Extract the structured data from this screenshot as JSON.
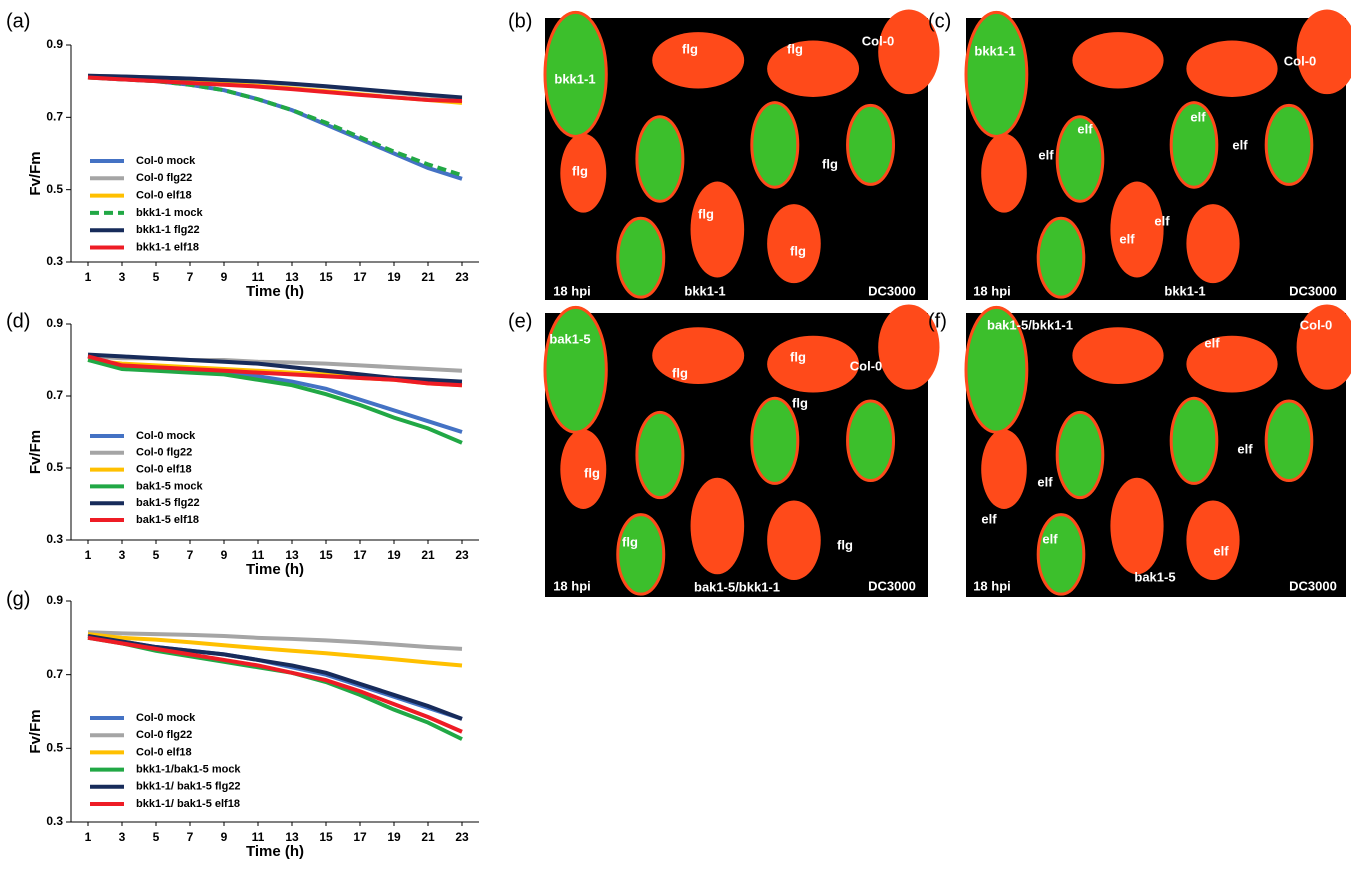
{
  "chart_data": [
    {
      "type": "line",
      "label": "(a)",
      "ylabel": "Fv/Fm",
      "xlabel": "Time (h)",
      "x": [
        1,
        3,
        5,
        7,
        9,
        11,
        13,
        15,
        17,
        19,
        21,
        23
      ],
      "xlim": [
        0,
        24
      ],
      "xticks": [
        1,
        3,
        5,
        7,
        9,
        11,
        13,
        15,
        17,
        19,
        21,
        23
      ],
      "ylim": [
        0.3,
        0.9
      ],
      "yticks": [
        0.3,
        0.5,
        0.7,
        0.9
      ],
      "legend": "lower-left",
      "series": [
        {
          "name": "Col-0 mock",
          "color": "#4472c4",
          "values": [
            0.81,
            0.805,
            0.8,
            0.79,
            0.775,
            0.75,
            0.72,
            0.68,
            0.64,
            0.6,
            0.56,
            0.53
          ]
        },
        {
          "name": "Col-0 flg22",
          "color": "#a5a5a5",
          "values": [
            0.815,
            0.813,
            0.81,
            0.807,
            0.803,
            0.798,
            0.792,
            0.785,
            0.777,
            0.768,
            0.76,
            0.75
          ]
        },
        {
          "name": "Col-0 elf18",
          "color": "#ffc000",
          "values": [
            0.81,
            0.806,
            0.802,
            0.798,
            0.793,
            0.787,
            0.78,
            0.772,
            0.764,
            0.755,
            0.748,
            0.74
          ]
        },
        {
          "name": "bkk1-1 mock",
          "color": "#21a845",
          "style": "dashed",
          "values": [
            0.81,
            0.805,
            0.8,
            0.79,
            0.775,
            0.75,
            0.72,
            0.685,
            0.645,
            0.605,
            0.57,
            0.54
          ]
        },
        {
          "name": "bkk1-1 flg22",
          "color": "#172b5a",
          "values": [
            0.815,
            0.813,
            0.81,
            0.807,
            0.803,
            0.799,
            0.793,
            0.786,
            0.778,
            0.77,
            0.762,
            0.755
          ]
        },
        {
          "name": "bkk1-1 elf18",
          "color": "#ee1c25",
          "values": [
            0.81,
            0.805,
            0.8,
            0.795,
            0.79,
            0.785,
            0.778,
            0.77,
            0.762,
            0.755,
            0.748,
            0.745
          ]
        }
      ]
    },
    {
      "type": "line",
      "label": "(d)",
      "ylabel": "Fv/Fm",
      "xlabel": "Time (h)",
      "x": [
        1,
        3,
        5,
        7,
        9,
        11,
        13,
        15,
        17,
        19,
        21,
        23
      ],
      "xlim": [
        0,
        24
      ],
      "xticks": [
        1,
        3,
        5,
        7,
        9,
        11,
        13,
        15,
        17,
        19,
        21,
        23
      ],
      "ylim": [
        0.3,
        0.9
      ],
      "yticks": [
        0.3,
        0.5,
        0.7,
        0.9
      ],
      "legend": "lower-left",
      "series": [
        {
          "name": "Col-0 mock",
          "color": "#4472c4",
          "values": [
            0.81,
            0.78,
            0.775,
            0.77,
            0.765,
            0.755,
            0.74,
            0.72,
            0.69,
            0.66,
            0.63,
            0.6
          ]
        },
        {
          "name": "Col-0 flg22",
          "color": "#a5a5a5",
          "values": [
            0.81,
            0.805,
            0.805,
            0.8,
            0.8,
            0.795,
            0.793,
            0.79,
            0.785,
            0.78,
            0.775,
            0.77
          ]
        },
        {
          "name": "Col-0 elf18",
          "color": "#ffc000",
          "values": [
            0.8,
            0.79,
            0.785,
            0.78,
            0.775,
            0.77,
            0.765,
            0.76,
            0.75,
            0.745,
            0.735,
            0.73
          ]
        },
        {
          "name": "bak1-5 mock",
          "color": "#21a845",
          "values": [
            0.8,
            0.775,
            0.77,
            0.765,
            0.76,
            0.745,
            0.73,
            0.705,
            0.675,
            0.64,
            0.61,
            0.57
          ]
        },
        {
          "name": "bak1-5 flg22",
          "color": "#172b5a",
          "values": [
            0.815,
            0.81,
            0.805,
            0.8,
            0.795,
            0.79,
            0.78,
            0.77,
            0.76,
            0.75,
            0.745,
            0.74
          ]
        },
        {
          "name": "bak1-5 elf18",
          "color": "#ee1c25",
          "values": [
            0.81,
            0.785,
            0.78,
            0.775,
            0.77,
            0.765,
            0.76,
            0.755,
            0.75,
            0.745,
            0.735,
            0.73
          ]
        }
      ]
    },
    {
      "type": "line",
      "label": "(g)",
      "ylabel": "Fv/Fm",
      "xlabel": "Time (h)",
      "x": [
        1,
        3,
        5,
        7,
        9,
        11,
        13,
        15,
        17,
        19,
        21,
        23
      ],
      "xlim": [
        0,
        24
      ],
      "xticks": [
        1,
        3,
        5,
        7,
        9,
        11,
        13,
        15,
        17,
        19,
        21,
        23
      ],
      "ylim": [
        0.3,
        0.9
      ],
      "yticks": [
        0.3,
        0.5,
        0.7,
        0.9
      ],
      "legend": "lower-left",
      "series": [
        {
          "name": "Col-0 mock",
          "color": "#4472c4",
          "values": [
            0.81,
            0.79,
            0.775,
            0.765,
            0.755,
            0.74,
            0.72,
            0.7,
            0.67,
            0.64,
            0.61,
            0.58
          ]
        },
        {
          "name": "Col-0 flg22",
          "color": "#a5a5a5",
          "values": [
            0.815,
            0.812,
            0.81,
            0.808,
            0.805,
            0.8,
            0.797,
            0.793,
            0.788,
            0.782,
            0.775,
            0.77
          ]
        },
        {
          "name": "Col-0 elf18",
          "color": "#ffc000",
          "values": [
            0.81,
            0.8,
            0.795,
            0.788,
            0.78,
            0.772,
            0.765,
            0.758,
            0.75,
            0.742,
            0.733,
            0.725
          ]
        },
        {
          "name": "bkk1-1/bak1-5 mock",
          "color": "#21a845",
          "values": [
            0.8,
            0.785,
            0.765,
            0.75,
            0.735,
            0.72,
            0.705,
            0.68,
            0.645,
            0.605,
            0.57,
            0.525
          ]
        },
        {
          "name": "bkk1-1/ bak1-5 flg22",
          "color": "#172b5a",
          "values": [
            0.805,
            0.79,
            0.775,
            0.765,
            0.755,
            0.74,
            0.725,
            0.705,
            0.675,
            0.645,
            0.615,
            0.58
          ]
        },
        {
          "name": "bkk1-1/ bak1-5 elf18",
          "color": "#ee1c25",
          "values": [
            0.8,
            0.785,
            0.77,
            0.755,
            0.74,
            0.725,
            0.705,
            0.685,
            0.655,
            0.62,
            0.585,
            0.545
          ]
        }
      ]
    }
  ],
  "images": [
    {
      "label": "(b)",
      "texts": [
        "bkk1-1",
        "flg",
        "flg",
        "Col-0",
        "flg",
        "flg",
        "flg",
        "flg",
        "18 hpi",
        "bkk1-1",
        "DC3000"
      ]
    },
    {
      "label": "(c)",
      "texts": [
        "bkk1-1",
        "Col-0",
        "elf",
        "elf",
        "elf",
        "elf",
        "elf",
        "elf",
        "18 hpi",
        "bkk1-1",
        "DC3000"
      ]
    },
    {
      "label": "(e)",
      "texts": [
        "bak1-5",
        "flg",
        "flg",
        "Col-0",
        "flg",
        "flg",
        "flg",
        "flg",
        "18 hpi",
        "bak1-5/bkk1-1",
        "DC3000"
      ]
    },
    {
      "label": "(f)",
      "texts": [
        "bak1-5/bkk1-1",
        "Col-0",
        "elf",
        "elf",
        "elf",
        "elf",
        "elf",
        "elf",
        "bak1-5",
        "18 hpi",
        "DC3000"
      ]
    }
  ]
}
